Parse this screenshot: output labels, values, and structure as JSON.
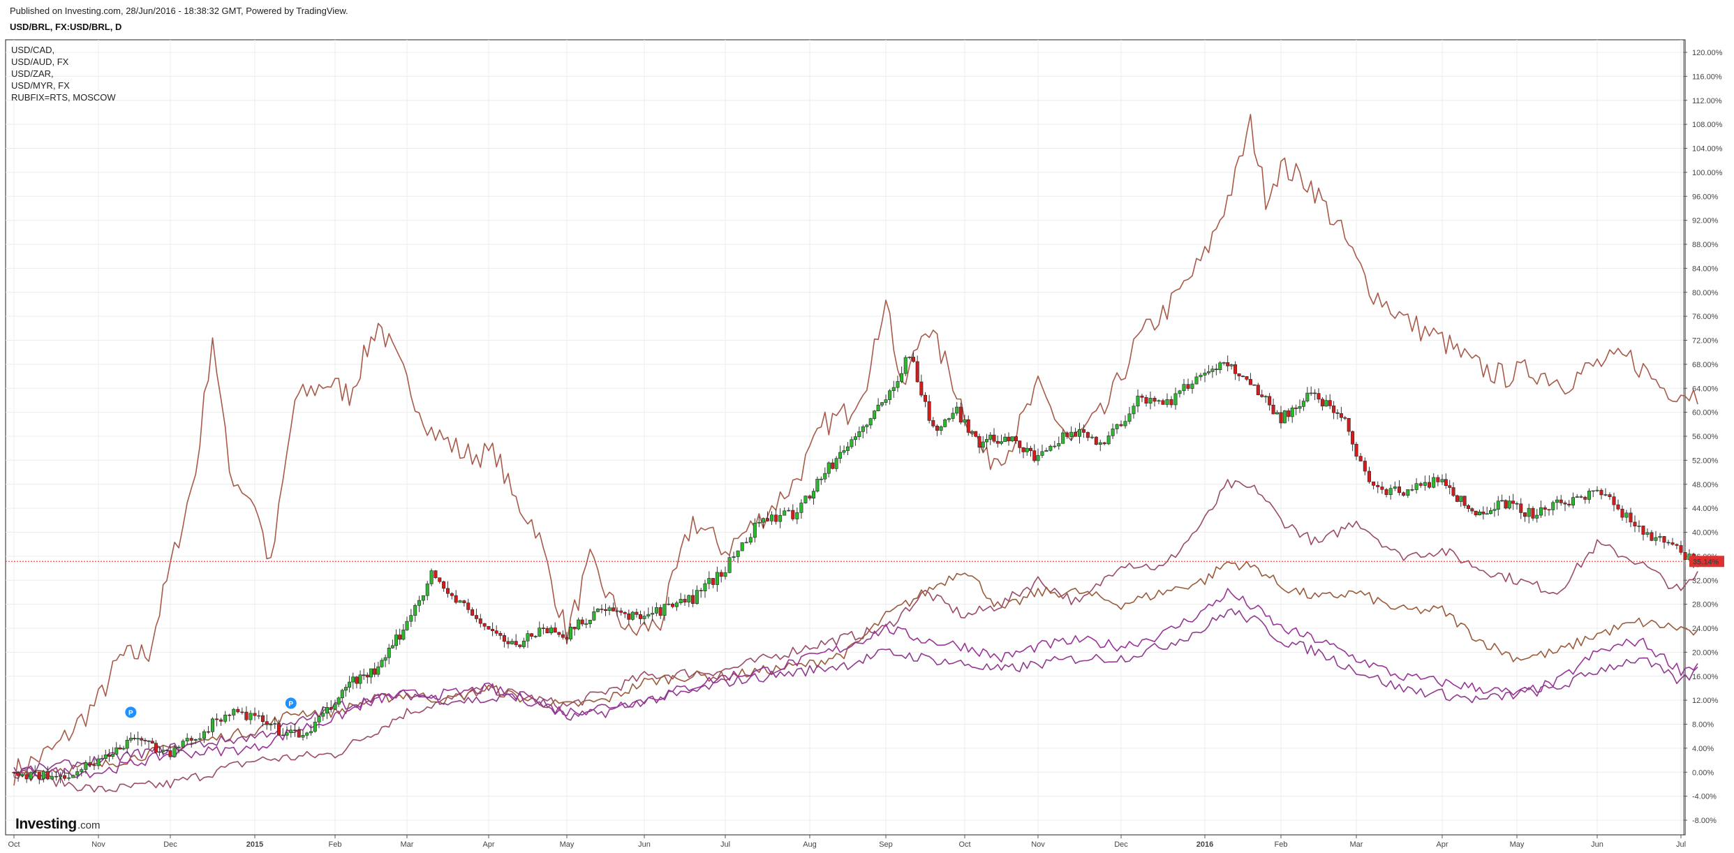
{
  "header": {
    "published": "Published on Investing.com, 28/Jun/2016 - 18:38:32 GMT, Powered by TradingView.",
    "title": "USD/BRL, FX:USD/BRL, D"
  },
  "legend": [
    "USD/CAD,",
    "USD/AUD, FX",
    "USD/ZAR,",
    "USD/MYR, FX",
    "RUBFIX=RTS, MOSCOW"
  ],
  "logo": {
    "main": "Investing",
    "sub": ".com"
  },
  "current_value_label": "35.14%",
  "markers": [
    {
      "label": "P",
      "t": 1.45,
      "y": 10
    },
    {
      "label": "P",
      "t": 3.45,
      "y": 11.5
    }
  ],
  "colors": {
    "candle_up": "#2db830",
    "candle_down": "#d31d1d",
    "rub": "#a85a4a",
    "zar": "#9a4a6a",
    "cad": "#9a5a3a",
    "myr": "#993399",
    "aud": "#8e3a8e",
    "current_line": "#e03030",
    "marker": "#1e90ff"
  },
  "chart_data": {
    "type": "line",
    "x_axis_labels": [
      "Oct",
      "Nov",
      "Dec",
      "2015",
      "Feb",
      "Mar",
      "Apr",
      "May",
      "Jun",
      "Jul",
      "Aug",
      "Sep",
      "Oct",
      "Nov",
      "Dec",
      "2016",
      "Feb",
      "Mar",
      "Apr",
      "May",
      "Jun",
      "Jul"
    ],
    "y_axis_labels": [
      "120.00%",
      "116.00%",
      "112.00%",
      "108.00%",
      "104.00%",
      "100.00%",
      "96.00%",
      "92.00%",
      "88.00%",
      "84.00%",
      "80.00%",
      "76.00%",
      "72.00%",
      "68.00%",
      "64.00%",
      "60.00%",
      "56.00%",
      "52.00%",
      "48.00%",
      "44.00%",
      "40.00%",
      "36.00%",
      "32.00%",
      "28.00%",
      "24.00%",
      "20.00%",
      "16.00%",
      "12.00%",
      "8.00%",
      "4.00%",
      "0.00%",
      "-4.00%",
      "-8.00%"
    ],
    "ylim": [
      -10,
      122
    ],
    "grid": true,
    "legend_position": "top-left",
    "y_unit": "%",
    "x_unit": "months since Oct 2014",
    "series": [
      {
        "name": "USD/BRL",
        "style": "candles",
        "x": [
          0,
          0.5,
          1,
          1.5,
          2,
          2.3,
          2.7,
          3,
          3.3,
          3.6,
          3.9,
          4.2,
          4.6,
          5,
          5.3,
          5.5,
          5.9,
          6.3,
          6.7,
          7,
          7.4,
          7.8,
          8.2,
          8.6,
          9,
          9.4,
          9.8,
          10.2,
          10.6,
          11,
          11.3,
          11.6,
          11.9,
          12.2,
          12.6,
          13,
          13.4,
          13.8,
          14.2,
          14.6,
          15,
          15.3,
          15.6,
          16,
          16.4,
          16.8,
          17.2,
          17.6,
          18,
          18.4,
          18.8,
          19.2,
          19.6,
          20,
          20.4,
          20.8,
          21.2
        ],
        "y": [
          0,
          -1,
          2,
          6,
          3,
          6,
          10,
          9,
          7,
          6,
          10,
          15,
          17,
          25,
          33,
          30,
          25,
          21,
          24,
          23,
          27,
          26,
          27,
          29,
          34,
          42,
          43,
          50,
          56,
          62,
          70,
          57,
          60,
          55,
          56,
          52,
          57,
          55,
          62,
          62,
          67,
          68,
          65,
          59,
          63,
          60,
          47,
          47,
          49,
          43,
          45,
          43,
          45,
          47,
          42,
          38,
          35.14
        ]
      },
      {
        "name": "RUBFIX=RTS, MOSCOW",
        "x": [
          0,
          0.5,
          1,
          1.3,
          1.7,
          2,
          2.3,
          2.5,
          2.7,
          3,
          3.2,
          3.5,
          3.9,
          4.2,
          4.6,
          5,
          5.3,
          5.7,
          6.1,
          6.3,
          6.6,
          7,
          7.3,
          7.8,
          8.2,
          8.6,
          9,
          9.4,
          9.8,
          10.2,
          10.5,
          10.8,
          11,
          11.2,
          11.5,
          11.8,
          12,
          12.3,
          12.6,
          13,
          13.4,
          13.8,
          14.2,
          14.6,
          15,
          15.4,
          15.6,
          15.8,
          16,
          16.4,
          16.8,
          17.2,
          17.6,
          18,
          18.4,
          18.8,
          19.2,
          19.6,
          20,
          20.4,
          20.8,
          21.2
        ],
        "y": [
          0,
          4,
          12,
          19,
          20,
          34,
          50,
          73,
          50,
          45,
          34,
          62,
          65,
          63,
          75,
          65,
          57,
          53,
          53,
          46,
          41,
          23,
          35,
          23,
          25,
          42,
          37,
          42,
          48,
          58,
          60,
          67,
          80,
          63,
          75,
          67,
          60,
          52,
          54,
          64,
          55,
          60,
          72,
          78,
          86,
          99,
          108,
          96,
          101,
          98,
          90,
          80,
          75,
          72,
          68,
          66,
          67,
          65,
          68,
          69,
          64,
          63
        ]
      },
      {
        "name": "USD/ZAR,",
        "x": [
          0,
          1,
          2,
          3,
          4,
          5,
          6,
          7,
          8,
          9,
          10,
          11,
          11.5,
          12,
          12.5,
          13,
          13.5,
          14,
          14.5,
          15,
          15.3,
          15.7,
          16,
          16.5,
          17,
          17.5,
          18,
          18.5,
          19,
          19.5,
          20,
          20.5,
          21,
          21.2
        ],
        "y": [
          0,
          -3,
          -2,
          2,
          3,
          10,
          14,
          11,
          16,
          17,
          21,
          24,
          30,
          26,
          28,
          32,
          28,
          35,
          34,
          42,
          48,
          47,
          42,
          38,
          42,
          36,
          37,
          34,
          32,
          30,
          38,
          35,
          30,
          33
        ]
      },
      {
        "name": "USD/CAD,",
        "x": [
          0,
          1,
          2,
          3,
          3.5,
          4,
          4.5,
          5,
          5.5,
          6,
          6.5,
          7,
          7.5,
          8,
          8.5,
          9,
          9.5,
          10,
          10.5,
          11,
          11.5,
          12,
          12.5,
          13,
          13.5,
          14,
          14.5,
          15,
          15.3,
          15.7,
          16,
          16.5,
          17,
          17.5,
          18,
          18.5,
          19,
          19.5,
          20,
          20.5,
          21,
          21.2
        ],
        "y": [
          0,
          1,
          4,
          7,
          10,
          10,
          12,
          13,
          12,
          14,
          12,
          11,
          12,
          15,
          16,
          16,
          17,
          18,
          20,
          26,
          30,
          34,
          27,
          30,
          30,
          28,
          30,
          32,
          35,
          34,
          31,
          29,
          30,
          27,
          27,
          22,
          19,
          20,
          23,
          25,
          24,
          23
        ]
      },
      {
        "name": "USD/MYR, FX",
        "x": [
          0,
          1,
          2,
          3,
          3.5,
          4,
          4.5,
          5,
          5.5,
          6,
          6.5,
          7,
          7.5,
          8,
          8.5,
          9,
          9.5,
          10,
          10.5,
          11,
          11.5,
          12,
          12.5,
          13,
          13.5,
          14,
          14.5,
          15,
          15.3,
          15.7,
          16,
          16.5,
          17,
          17.5,
          18,
          18.5,
          19,
          19.5,
          20,
          20.5,
          21,
          21.2
        ],
        "y": [
          0,
          0,
          3,
          4,
          7,
          9,
          12,
          13,
          13,
          14,
          12,
          10,
          11,
          12,
          14,
          16,
          17,
          19,
          21,
          24,
          22,
          21,
          19,
          21,
          22,
          21,
          23,
          27,
          30,
          27,
          24,
          22,
          19,
          16,
          15,
          14,
          13,
          15,
          20,
          22,
          17,
          18
        ]
      },
      {
        "name": "USD/AUD, FX",
        "x": [
          0,
          1,
          2,
          3,
          3.5,
          4,
          4.5,
          5,
          5.5,
          6,
          6.5,
          7,
          7.5,
          8,
          8.5,
          9,
          9.5,
          10,
          10.5,
          11,
          11.5,
          12,
          12.5,
          13,
          13.5,
          14,
          14.5,
          15,
          15.3,
          15.7,
          16,
          16.5,
          17,
          17.5,
          18,
          18.5,
          19,
          19.5,
          20,
          20.5,
          21,
          21.2
        ],
        "y": [
          0,
          2,
          4,
          6,
          8,
          11,
          12,
          13,
          12,
          12,
          13,
          9,
          10,
          12,
          13,
          15,
          16,
          17,
          18,
          20,
          19,
          18,
          17,
          18,
          19,
          19,
          21,
          24,
          27,
          25,
          22,
          20,
          17,
          14,
          13,
          12,
          13,
          14,
          17,
          19,
          15,
          17
        ]
      }
    ]
  }
}
